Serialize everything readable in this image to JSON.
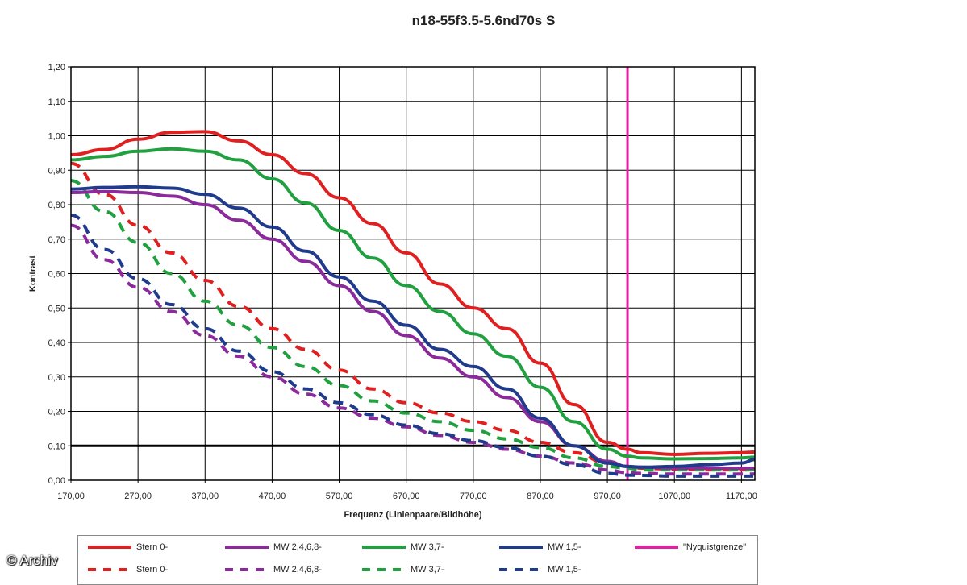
{
  "chart_data": {
    "type": "line",
    "title": "n18-55f3.5-5.6nd70s S",
    "xlabel": "Frequenz (Linienpaare/Bildhöhe)",
    "ylabel": "Kontrast",
    "xlim": [
      170,
      1190
    ],
    "ylim": [
      0,
      1.2
    ],
    "x_ticks": [
      "170,00",
      "270,00",
      "370,00",
      "470,00",
      "570,00",
      "670,00",
      "770,00",
      "870,00",
      "970,00",
      "1070,00",
      "1170,00"
    ],
    "y_ticks": [
      "0,00",
      "0,10",
      "0,20",
      "0,30",
      "0,40",
      "0,50",
      "0,60",
      "0,70",
      "0,80",
      "0,90",
      "1,00",
      "1,10",
      "1,20"
    ],
    "x": [
      170,
      220,
      270,
      320,
      370,
      420,
      470,
      520,
      570,
      620,
      670,
      720,
      770,
      820,
      870,
      920,
      970,
      1000,
      1020,
      1070,
      1120,
      1170,
      1190
    ],
    "series": [
      {
        "name": "Stern 0-",
        "color": "#e02020",
        "dash": false,
        "values": [
          0.945,
          0.96,
          0.99,
          1.01,
          1.012,
          0.985,
          0.945,
          0.89,
          0.82,
          0.745,
          0.66,
          0.57,
          0.5,
          0.44,
          0.34,
          0.22,
          0.11,
          0.09,
          0.08,
          0.075,
          0.078,
          0.08,
          0.082
        ]
      },
      {
        "name": "MW 2,4,6,8-",
        "color": "#8b2a9a",
        "dash": false,
        "values": [
          0.835,
          0.838,
          0.835,
          0.825,
          0.8,
          0.755,
          0.7,
          0.635,
          0.565,
          0.49,
          0.42,
          0.355,
          0.3,
          0.24,
          0.17,
          0.1,
          0.055,
          0.04,
          0.038,
          0.035,
          0.035,
          0.035,
          0.035
        ]
      },
      {
        "name": "MW 3,7-",
        "color": "#21a040",
        "dash": false,
        "values": [
          0.93,
          0.94,
          0.955,
          0.962,
          0.955,
          0.93,
          0.875,
          0.805,
          0.725,
          0.645,
          0.565,
          0.49,
          0.425,
          0.36,
          0.27,
          0.17,
          0.09,
          0.07,
          0.065,
          0.062,
          0.063,
          0.065,
          0.067
        ]
      },
      {
        "name": "MW 1,5-",
        "color": "#203a8c",
        "dash": false,
        "values": [
          0.845,
          0.85,
          0.852,
          0.848,
          0.83,
          0.79,
          0.735,
          0.665,
          0.59,
          0.52,
          0.45,
          0.38,
          0.33,
          0.265,
          0.18,
          0.1,
          0.05,
          0.04,
          0.038,
          0.04,
          0.045,
          0.05,
          0.06
        ]
      },
      {
        "name": "Stern 0-",
        "color": "#e02020",
        "dash": true,
        "values": [
          0.92,
          0.83,
          0.74,
          0.66,
          0.58,
          0.505,
          0.44,
          0.38,
          0.32,
          0.265,
          0.225,
          0.195,
          0.17,
          0.145,
          0.11,
          0.08,
          0.05,
          0.04,
          0.035,
          0.032,
          0.03,
          0.03,
          0.03
        ]
      },
      {
        "name": "MW 2,4,6,8-",
        "color": "#8b2a9a",
        "dash": true,
        "values": [
          0.74,
          0.64,
          0.56,
          0.49,
          0.42,
          0.36,
          0.3,
          0.25,
          0.21,
          0.18,
          0.155,
          0.13,
          0.11,
          0.09,
          0.07,
          0.05,
          0.03,
          0.022,
          0.02,
          0.018,
          0.018,
          0.018,
          0.018
        ]
      },
      {
        "name": "MW 3,7-",
        "color": "#21a040",
        "dash": true,
        "values": [
          0.87,
          0.78,
          0.69,
          0.6,
          0.52,
          0.45,
          0.385,
          0.33,
          0.275,
          0.23,
          0.195,
          0.17,
          0.145,
          0.12,
          0.095,
          0.065,
          0.04,
          0.035,
          0.03,
          0.03,
          0.03,
          0.03,
          0.03
        ]
      },
      {
        "name": "MW 1,5-",
        "color": "#203a8c",
        "dash": true,
        "values": [
          0.77,
          0.67,
          0.585,
          0.51,
          0.44,
          0.375,
          0.315,
          0.265,
          0.225,
          0.19,
          0.16,
          0.135,
          0.115,
          0.095,
          0.07,
          0.045,
          0.02,
          0.015,
          0.014,
          0.012,
          0.012,
          0.012,
          0.012
        ]
      }
    ],
    "nyquist": {
      "name": "\"Nyquistgrenze\"",
      "x": 1000,
      "color": "#e020a0"
    },
    "threshold": {
      "y": 0.1,
      "color": "#000000"
    },
    "grid": true,
    "legend_position": "bottom"
  },
  "legend": {
    "items": [
      {
        "label": "Stern 0-",
        "color": "#e02020",
        "dash": false
      },
      {
        "label": "MW 2,4,6,8-",
        "color": "#8b2a9a",
        "dash": false
      },
      {
        "label": "MW 3,7-",
        "color": "#21a040",
        "dash": false
      },
      {
        "label": "MW 1,5-",
        "color": "#203a8c",
        "dash": false
      },
      {
        "label": "\"Nyquistgrenze\"",
        "color": "#e020a0",
        "dash": false
      },
      {
        "label": "Stern 0-",
        "color": "#e02020",
        "dash": true
      },
      {
        "label": "MW 2,4,6,8-",
        "color": "#8b2a9a",
        "dash": true
      },
      {
        "label": "MW 3,7-",
        "color": "#21a040",
        "dash": true
      },
      {
        "label": "MW 1,5-",
        "color": "#203a8c",
        "dash": true
      }
    ]
  },
  "watermark": "© Archiv"
}
